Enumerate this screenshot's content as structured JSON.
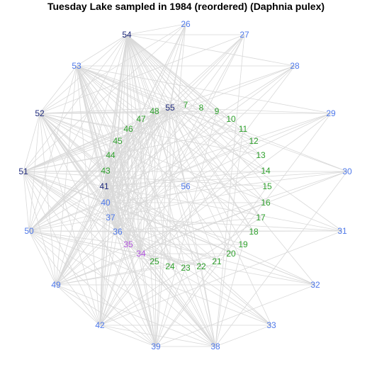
{
  "title": "Tuesday Lake sampled in 1984 (reordered) (Daphnia pulex)",
  "colors": {
    "green": "#2ea02c",
    "blue": "#4f79ea",
    "navy": "#1f2a7c",
    "purple": "#b457e0",
    "edge": "#d9d9d9"
  },
  "nodes": [
    {
      "id": "7",
      "label": "7",
      "color": "green"
    },
    {
      "id": "8",
      "label": "8",
      "color": "green"
    },
    {
      "id": "9",
      "label": "9",
      "color": "green"
    },
    {
      "id": "10",
      "label": "10",
      "color": "green"
    },
    {
      "id": "11",
      "label": "11",
      "color": "green"
    },
    {
      "id": "12",
      "label": "12",
      "color": "green"
    },
    {
      "id": "13",
      "label": "13",
      "color": "green"
    },
    {
      "id": "14",
      "label": "14",
      "color": "green"
    },
    {
      "id": "15",
      "label": "15",
      "color": "green"
    },
    {
      "id": "16",
      "label": "16",
      "color": "green"
    },
    {
      "id": "17",
      "label": "17",
      "color": "green"
    },
    {
      "id": "18",
      "label": "18",
      "color": "green"
    },
    {
      "id": "19",
      "label": "19",
      "color": "green"
    },
    {
      "id": "20",
      "label": "20",
      "color": "green"
    },
    {
      "id": "21",
      "label": "21",
      "color": "green"
    },
    {
      "id": "22",
      "label": "22",
      "color": "green"
    },
    {
      "id": "23",
      "label": "23",
      "color": "green"
    },
    {
      "id": "24",
      "label": "24",
      "color": "green"
    },
    {
      "id": "25",
      "label": "25",
      "color": "green"
    },
    {
      "id": "34",
      "label": "34",
      "color": "purple"
    },
    {
      "id": "35",
      "label": "35",
      "color": "purple"
    },
    {
      "id": "36",
      "label": "36",
      "color": "blue"
    },
    {
      "id": "37",
      "label": "37",
      "color": "blue"
    },
    {
      "id": "40",
      "label": "40",
      "color": "blue"
    },
    {
      "id": "41",
      "label": "41",
      "color": "navy"
    },
    {
      "id": "43",
      "label": "43",
      "color": "green"
    },
    {
      "id": "44",
      "label": "44",
      "color": "green"
    },
    {
      "id": "45",
      "label": "45",
      "color": "green"
    },
    {
      "id": "46",
      "label": "46",
      "color": "green"
    },
    {
      "id": "47",
      "label": "47",
      "color": "green"
    },
    {
      "id": "48",
      "label": "48",
      "color": "green"
    },
    {
      "id": "55",
      "label": "55",
      "color": "navy"
    },
    {
      "id": "56",
      "label": "56",
      "color": "blue"
    },
    {
      "id": "26",
      "label": "26",
      "color": "blue"
    },
    {
      "id": "27",
      "label": "27",
      "color": "blue"
    },
    {
      "id": "28",
      "label": "28",
      "color": "blue"
    },
    {
      "id": "29",
      "label": "29",
      "color": "blue"
    },
    {
      "id": "30",
      "label": "30",
      "color": "blue"
    },
    {
      "id": "31",
      "label": "31",
      "color": "blue"
    },
    {
      "id": "32",
      "label": "32",
      "color": "blue"
    },
    {
      "id": "33",
      "label": "33",
      "color": "blue"
    },
    {
      "id": "38",
      "label": "38",
      "color": "blue"
    },
    {
      "id": "39",
      "label": "39",
      "color": "blue"
    },
    {
      "id": "42",
      "label": "42",
      "color": "blue"
    },
    {
      "id": "49",
      "label": "49",
      "color": "blue"
    },
    {
      "id": "50",
      "label": "50",
      "color": "blue"
    },
    {
      "id": "51",
      "label": "51",
      "color": "navy"
    },
    {
      "id": "52",
      "label": "52",
      "color": "navy"
    },
    {
      "id": "53",
      "label": "53",
      "color": "blue"
    },
    {
      "id": "54",
      "label": "54",
      "color": "navy"
    }
  ]
}
